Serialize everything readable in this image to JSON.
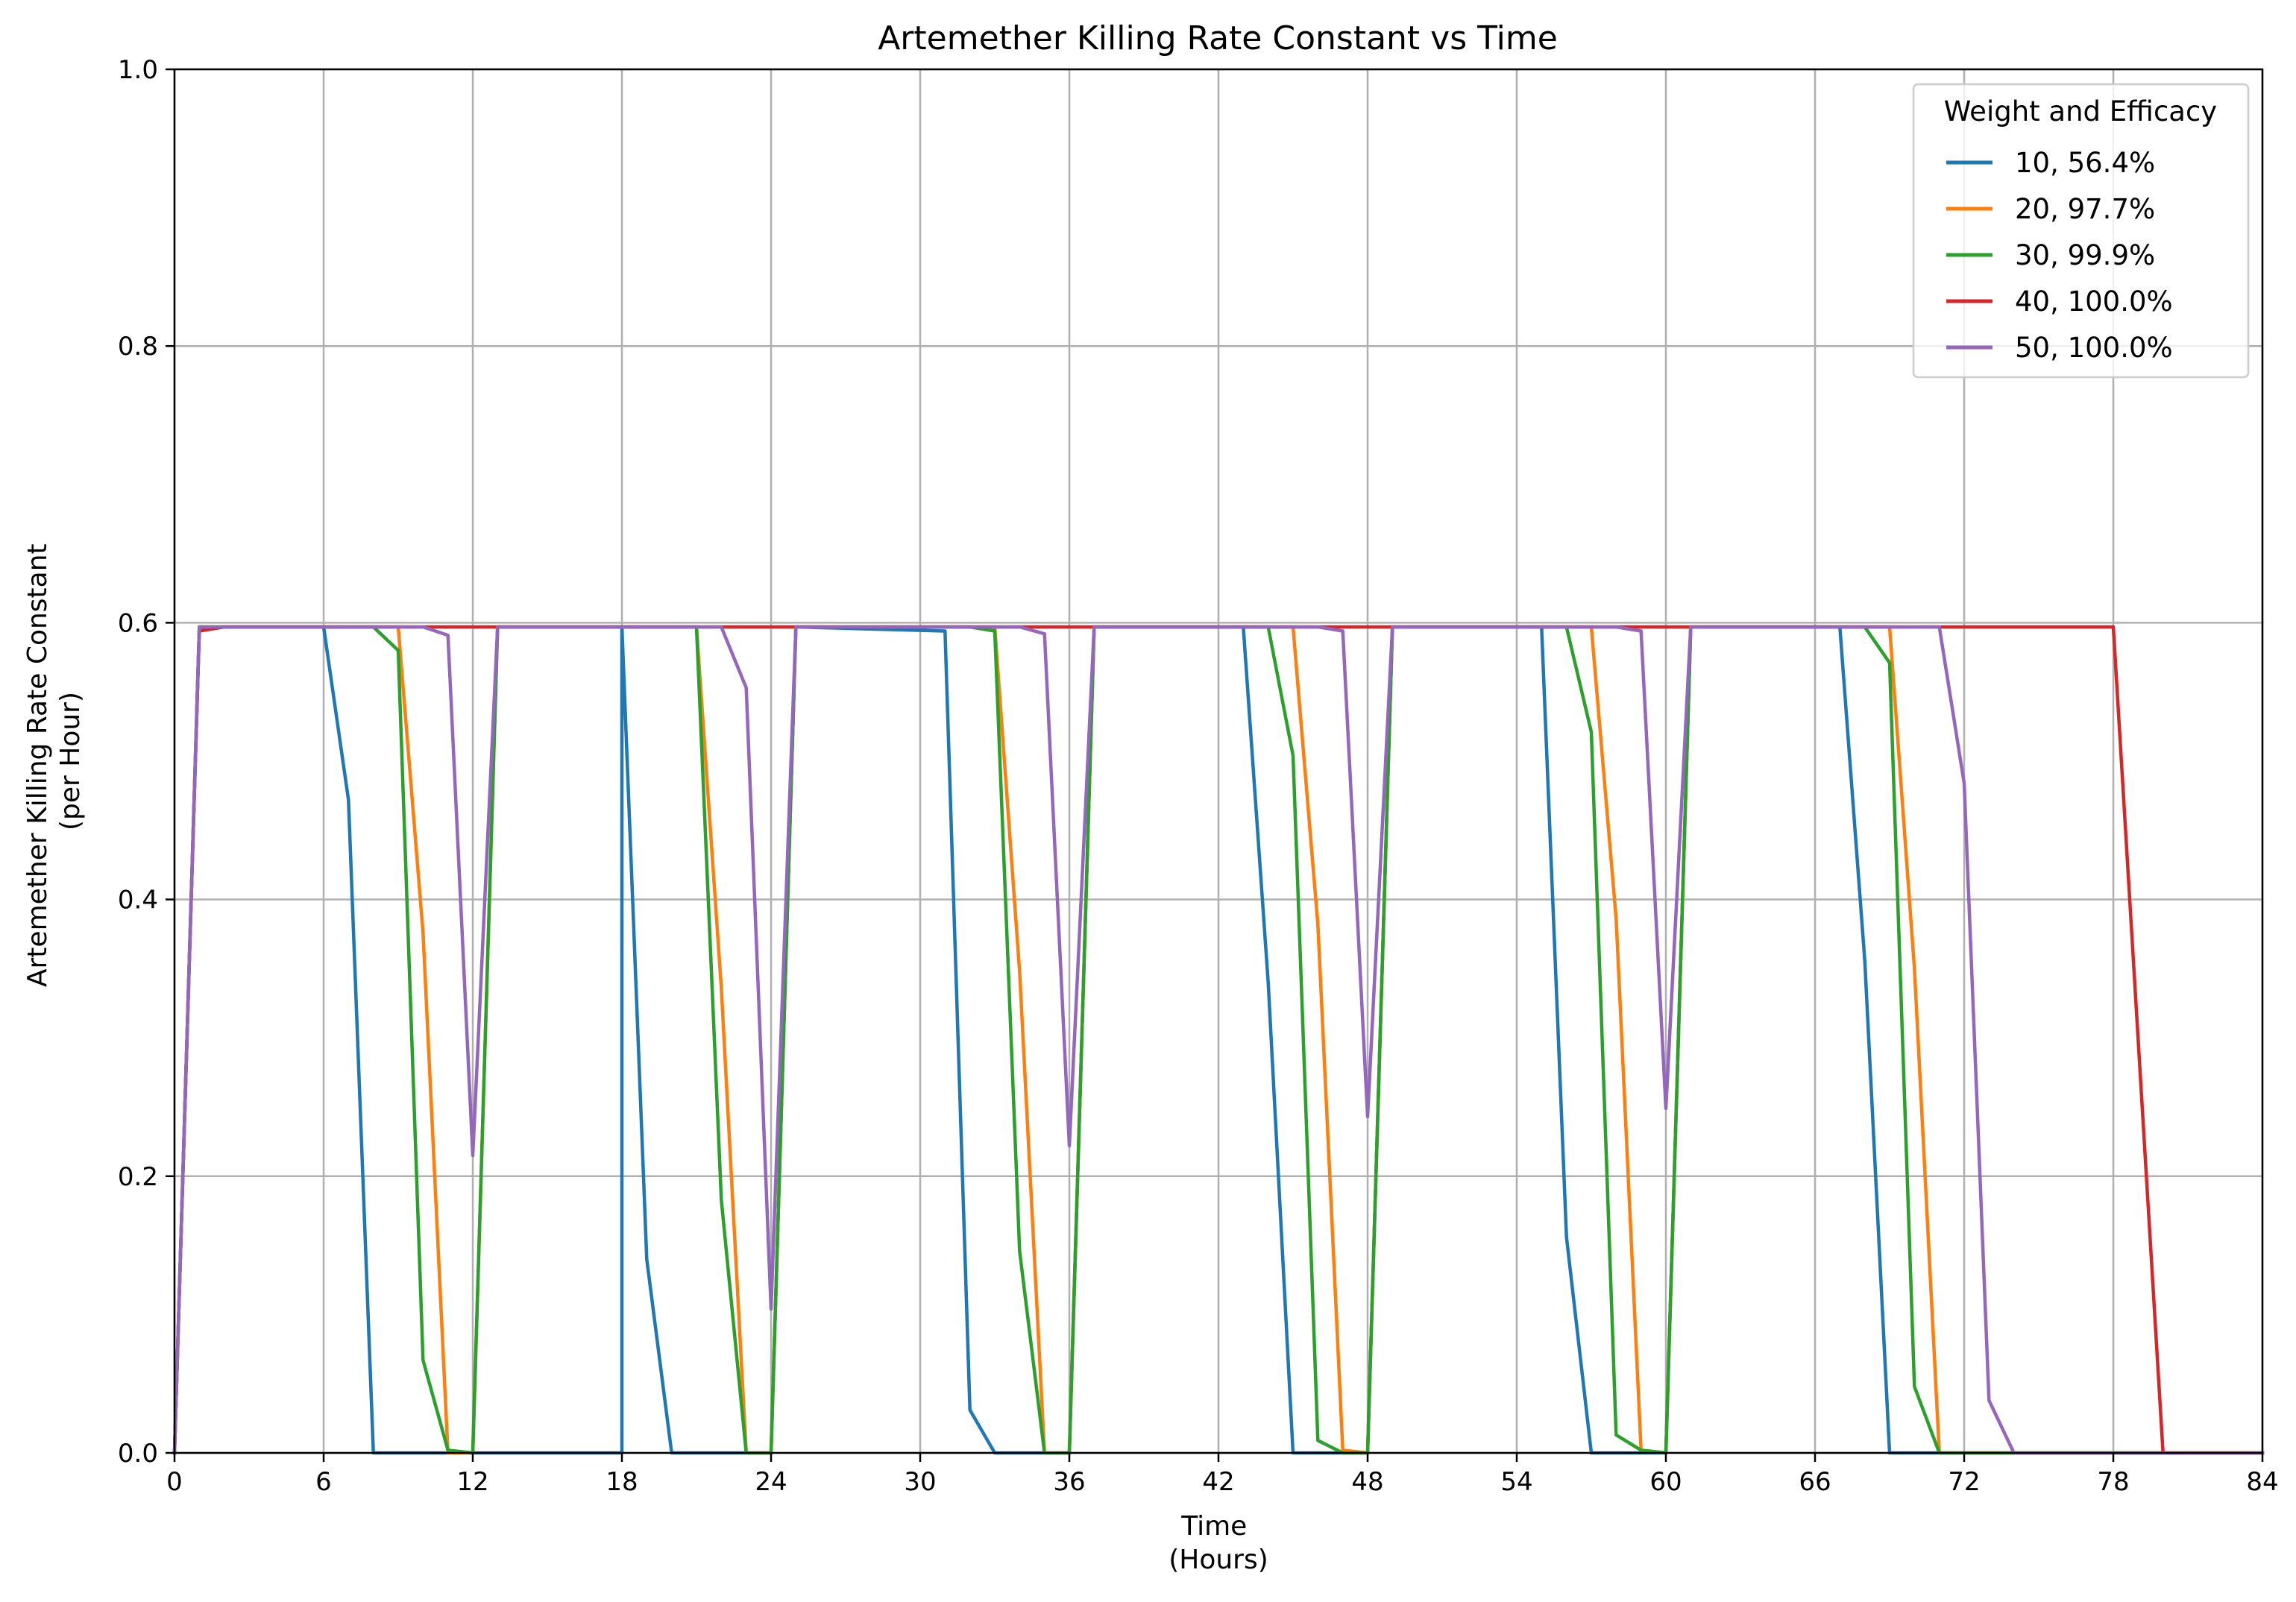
{
  "chart_data": {
    "type": "line",
    "title": "Artemether Killing Rate Constant vs Time",
    "xlabel": [
      "Time",
      "(Hours)"
    ],
    "ylabel": [
      "Artemether Killing Rate Constant",
      "(per Hour)"
    ],
    "xlim": [
      0,
      84
    ],
    "ylim": [
      0,
      1.0
    ],
    "xticks": [
      0,
      6,
      12,
      18,
      24,
      30,
      36,
      42,
      48,
      54,
      60,
      66,
      72,
      78,
      84
    ],
    "xtick_labels": [
      "0",
      "6",
      "12",
      "18",
      "24",
      "30",
      "36",
      "42",
      "48",
      "54",
      "60",
      "66",
      "72",
      "78",
      "84"
    ],
    "yticks": [
      0.0,
      0.2,
      0.4,
      0.6,
      0.8,
      1.0
    ],
    "ytick_labels": [
      "0.0",
      "0.2",
      "0.4",
      "0.6",
      "0.8",
      "1.0"
    ],
    "grid": true,
    "legend": {
      "title": "Weight and Efficacy",
      "placement": "top-right"
    },
    "series": [
      {
        "name": "10, 56.4%",
        "color": "#1f77b4",
        "points": [
          [
            0,
            0
          ],
          [
            1,
            0.597
          ],
          [
            6,
            0.597
          ],
          [
            7,
            0.472
          ],
          [
            8,
            0
          ],
          [
            18,
            0
          ],
          [
            18,
            0.597
          ],
          [
            19,
            0.14
          ],
          [
            20,
            0
          ],
          [
            24,
            0
          ],
          [
            25,
            0.597
          ],
          [
            31,
            0.594
          ],
          [
            32,
            0.031
          ],
          [
            33,
            0
          ],
          [
            36,
            0
          ],
          [
            37,
            0.597
          ],
          [
            43,
            0.597
          ],
          [
            44,
            0.34
          ],
          [
            45,
            0
          ],
          [
            48,
            0
          ],
          [
            49,
            0.597
          ],
          [
            55,
            0.597
          ],
          [
            56,
            0.156
          ],
          [
            57,
            0
          ],
          [
            60,
            0
          ],
          [
            61,
            0.597
          ],
          [
            67,
            0.597
          ],
          [
            68,
            0.356
          ],
          [
            69,
            0
          ],
          [
            84,
            0
          ]
        ]
      },
      {
        "name": "20, 97.7%",
        "color": "#ff7f0e",
        "points": [
          [
            0,
            0
          ],
          [
            1,
            0.597
          ],
          [
            9,
            0.597
          ],
          [
            10,
            0.376
          ],
          [
            11,
            0
          ],
          [
            12,
            0
          ],
          [
            13,
            0.597
          ],
          [
            21,
            0.597
          ],
          [
            22,
            0.336
          ],
          [
            23,
            0
          ],
          [
            24,
            0
          ],
          [
            25,
            0.597
          ],
          [
            33,
            0.597
          ],
          [
            34,
            0.348
          ],
          [
            35,
            0
          ],
          [
            36,
            0
          ],
          [
            37,
            0.597
          ],
          [
            45,
            0.597
          ],
          [
            46,
            0.382
          ],
          [
            47,
            0.002
          ],
          [
            48,
            0
          ],
          [
            49,
            0.597
          ],
          [
            57,
            0.597
          ],
          [
            58,
            0.386
          ],
          [
            59,
            0.002
          ],
          [
            60,
            0
          ],
          [
            61,
            0.597
          ],
          [
            69,
            0.597
          ],
          [
            70,
            0.35
          ],
          [
            71,
            0
          ],
          [
            84,
            0
          ]
        ]
      },
      {
        "name": "30, 99.9%",
        "color": "#2ca02c",
        "points": [
          [
            0,
            0
          ],
          [
            1,
            0.597
          ],
          [
            8,
            0.597
          ],
          [
            9,
            0.58
          ],
          [
            10,
            0.067
          ],
          [
            11,
            0.002
          ],
          [
            12,
            0
          ],
          [
            13,
            0.597
          ],
          [
            21,
            0.597
          ],
          [
            22,
            0.183
          ],
          [
            23,
            0
          ],
          [
            24,
            0
          ],
          [
            25,
            0.597
          ],
          [
            32,
            0.597
          ],
          [
            33,
            0.594
          ],
          [
            34,
            0.146
          ],
          [
            35,
            0
          ],
          [
            36,
            0
          ],
          [
            37,
            0.597
          ],
          [
            44,
            0.597
          ],
          [
            45,
            0.504
          ],
          [
            46,
            0.009
          ],
          [
            47,
            0
          ],
          [
            48,
            0
          ],
          [
            49,
            0.597
          ],
          [
            56,
            0.597
          ],
          [
            57,
            0.521
          ],
          [
            58,
            0.013
          ],
          [
            59,
            0.002
          ],
          [
            60,
            0
          ],
          [
            61,
            0.597
          ],
          [
            68,
            0.597
          ],
          [
            69,
            0.571
          ],
          [
            70,
            0.048
          ],
          [
            71,
            0
          ],
          [
            72,
            0
          ],
          [
            73,
            0
          ],
          [
            84,
            0
          ]
        ]
      },
      {
        "name": "40, 100.0%",
        "color": "#d62728",
        "points": [
          [
            0,
            0
          ],
          [
            1,
            0.594
          ],
          [
            2,
            0.597
          ],
          [
            78,
            0.597
          ],
          [
            80,
            0
          ],
          [
            84,
            0
          ]
        ]
      },
      {
        "name": "50, 100.0%",
        "color": "#9467bd",
        "points": [
          [
            0,
            0
          ],
          [
            1,
            0.597
          ],
          [
            10,
            0.597
          ],
          [
            11,
            0.591
          ],
          [
            12,
            0.215
          ],
          [
            13,
            0.597
          ],
          [
            22,
            0.597
          ],
          [
            23,
            0.553
          ],
          [
            24,
            0.104
          ],
          [
            25,
            0.597
          ],
          [
            34,
            0.597
          ],
          [
            35,
            0.592
          ],
          [
            36,
            0.222
          ],
          [
            37,
            0.597
          ],
          [
            46,
            0.597
          ],
          [
            47,
            0.594
          ],
          [
            48,
            0.243
          ],
          [
            49,
            0.597
          ],
          [
            58,
            0.597
          ],
          [
            59,
            0.594
          ],
          [
            60,
            0.249
          ],
          [
            61,
            0.597
          ],
          [
            71,
            0.597
          ],
          [
            72,
            0.484
          ],
          [
            73,
            0.038
          ],
          [
            74,
            0
          ],
          [
            84,
            0
          ]
        ]
      }
    ]
  }
}
